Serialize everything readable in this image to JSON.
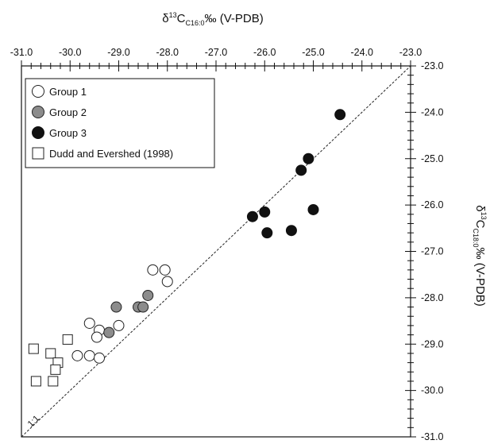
{
  "chart_data": {
    "type": "scatter",
    "title": "",
    "x_axis": {
      "label_main": "δ",
      "label_sup": "13",
      "label_base": "C",
      "label_sub": "C16:0",
      "label_tail": "‰ (V-PDB)",
      "position": "top",
      "range": [
        -31.0,
        -23.0
      ],
      "ticks": [
        "-31.0",
        "-30.0",
        "-29.0",
        "-28.0",
        "-27.0",
        "-26.0",
        "-25.0",
        "-24.0",
        "-23.0"
      ]
    },
    "y_axis": {
      "label_main": "δ",
      "label_sup": "13",
      "label_base": "C",
      "label_sub": "C18:0",
      "label_tail": "‰ (V-PDB)",
      "position": "right",
      "range": [
        -31.0,
        -23.0
      ],
      "ticks": [
        "-23.0",
        "-24.0",
        "-25.0",
        "-26.0",
        "-27.0",
        "-28.0",
        "-29.0",
        "-30.0",
        "-31.0"
      ]
    },
    "reference_line": {
      "label": "1:1",
      "from": [
        -31.0,
        -31.0
      ],
      "to": [
        -23.0,
        -23.0
      ],
      "style": "dashed"
    },
    "legend_position": "top-left",
    "series": [
      {
        "name": "Group 1",
        "marker": "circle",
        "fill": "#ffffff",
        "stroke": "#222222",
        "points": [
          [
            -29.6,
            -28.55
          ],
          [
            -29.4,
            -28.7
          ],
          [
            -29.45,
            -28.85
          ],
          [
            -29.85,
            -29.25
          ],
          [
            -29.6,
            -29.25
          ],
          [
            -29.4,
            -29.3
          ],
          [
            -29.0,
            -28.6
          ],
          [
            -28.3,
            -27.4
          ],
          [
            -28.05,
            -27.4
          ],
          [
            -28.0,
            -27.65
          ]
        ]
      },
      {
        "name": "Group 2",
        "marker": "circle",
        "fill": "#8c8c8c",
        "stroke": "#222222",
        "points": [
          [
            -29.05,
            -28.2
          ],
          [
            -29.2,
            -28.75
          ],
          [
            -28.6,
            -28.2
          ],
          [
            -28.5,
            -28.2
          ],
          [
            -28.4,
            -27.95
          ]
        ]
      },
      {
        "name": "Group 3",
        "marker": "circle",
        "fill": "#111111",
        "stroke": "#111111",
        "points": [
          [
            -24.45,
            -24.05
          ],
          [
            -25.1,
            -25.0
          ],
          [
            -25.25,
            -25.25
          ],
          [
            -26.25,
            -26.25
          ],
          [
            -26.0,
            -26.15
          ],
          [
            -25.95,
            -26.6
          ],
          [
            -25.45,
            -26.55
          ],
          [
            -25.0,
            -26.1
          ]
        ]
      },
      {
        "name": "Dudd and Evershed (1998)",
        "marker": "square",
        "fill": "#ffffff",
        "stroke": "#222222",
        "points": [
          [
            -30.75,
            -29.1
          ],
          [
            -30.4,
            -29.2
          ],
          [
            -30.25,
            -29.4
          ],
          [
            -30.3,
            -29.55
          ],
          [
            -30.05,
            -28.9
          ],
          [
            -30.7,
            -29.8
          ],
          [
            -30.35,
            -29.8
          ]
        ]
      }
    ]
  }
}
